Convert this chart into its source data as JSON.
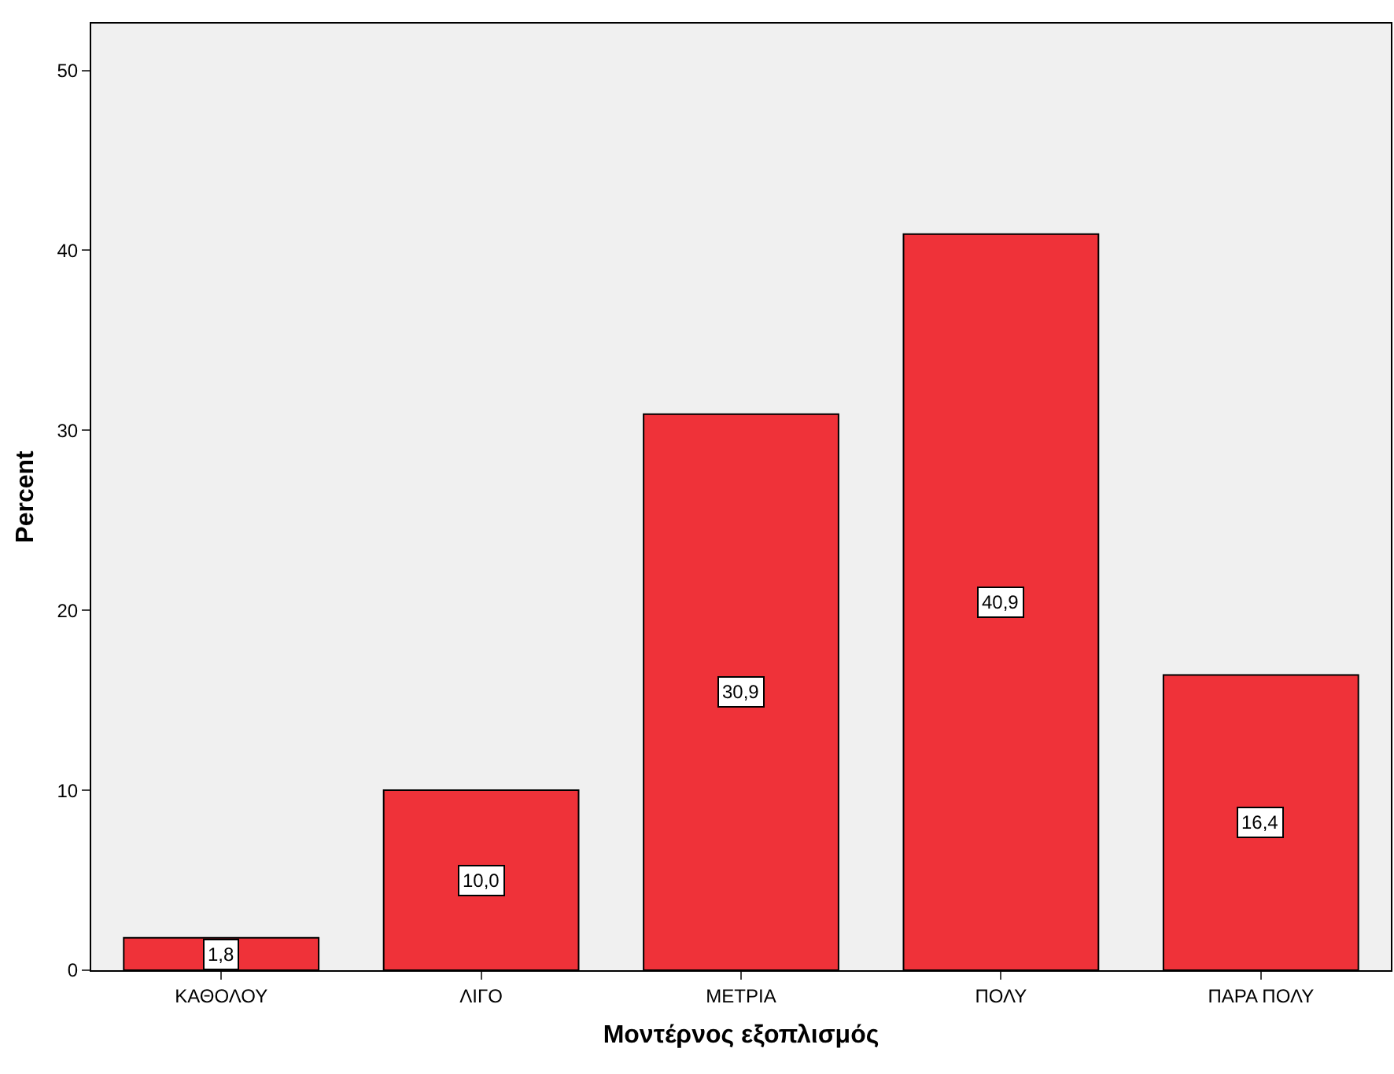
{
  "chart_data": {
    "type": "bar",
    "xlabel": "Μοντέρνος εξοπλισμός",
    "ylabel": "Percent",
    "categories": [
      "ΚΑΘΟΛΟΥ",
      "ΛΙΓΟ",
      "ΜΕΤΡΙΑ",
      "ΠΟΛΥ",
      "ΠΑΡΑ ΠΟΛΥ"
    ],
    "values": [
      1.8,
      10.0,
      30.9,
      40.9,
      16.4
    ],
    "value_labels": [
      "1,8",
      "10,0",
      "30,9",
      "40,9",
      "16,4"
    ],
    "color": "#ef3239",
    "ylim": [
      0,
      52.6
    ],
    "yticks": [
      0,
      10,
      20,
      30,
      40,
      50
    ],
    "grid": false,
    "legend": false
  }
}
